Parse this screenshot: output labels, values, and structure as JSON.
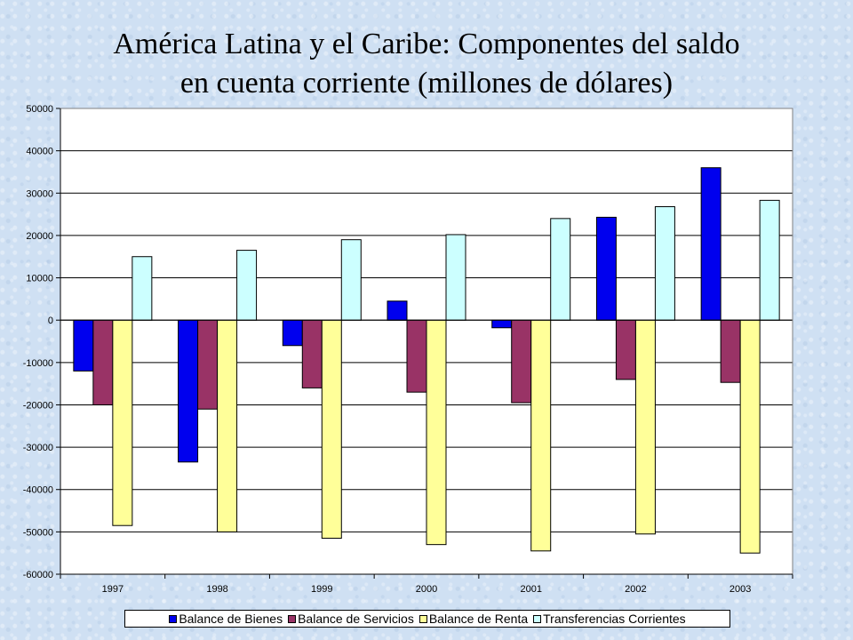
{
  "title_line1": "América  Latina y el Caribe: Componentes del saldo",
  "title_line2": "en cuenta corriente (millones de dólares)",
  "colors": {
    "balance_bienes": "#0000ee",
    "balance_servicios": "#993366",
    "balance_renta": "#ffff99",
    "transferencias": "#ccffff"
  },
  "chart_data": {
    "type": "bar",
    "title": "América  Latina y el Caribe: Componentes del saldo en cuenta corriente (millones de dólares)",
    "xlabel": "",
    "ylabel": "",
    "ylim": [
      -60000,
      50000
    ],
    "yticks": [
      50000,
      40000,
      30000,
      20000,
      10000,
      0,
      -10000,
      -20000,
      -30000,
      -40000,
      -50000,
      -60000
    ],
    "grid": true,
    "legend_position": "bottom",
    "categories": [
      "1997",
      "1998",
      "1999",
      "2000",
      "2001",
      "2002",
      "2003"
    ],
    "series": [
      {
        "name": "Balance de Bienes",
        "values": [
          -12000,
          -33500,
          -6000,
          4500,
          -1800,
          24300,
          36000
        ]
      },
      {
        "name": "Balance de Servicios",
        "values": [
          -20000,
          -21000,
          -16000,
          -17000,
          -19500,
          -14000,
          -14700
        ]
      },
      {
        "name": "Balance de Renta",
        "values": [
          -48500,
          -50000,
          -51500,
          -53000,
          -54500,
          -50500,
          -55000
        ]
      },
      {
        "name": "Transferencias Corrientes",
        "values": [
          15000,
          16500,
          19000,
          20200,
          24000,
          26800,
          28300
        ]
      }
    ]
  }
}
